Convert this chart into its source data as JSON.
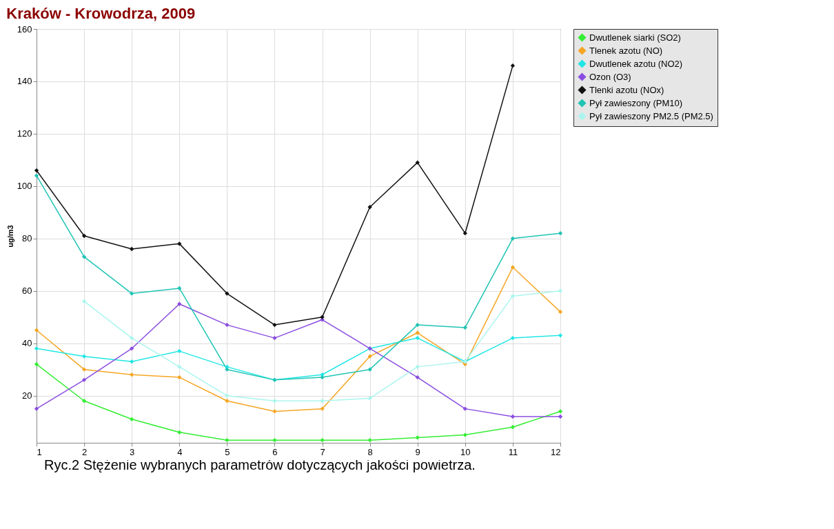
{
  "chart_data": {
    "type": "line",
    "title": "Kraków - Krowodrza, 2009",
    "ylabel": "ug/m3",
    "x": [
      1,
      2,
      3,
      4,
      5,
      6,
      7,
      8,
      9,
      10,
      11,
      12
    ],
    "xlim": [
      1,
      12
    ],
    "xticks": [
      1,
      2,
      3,
      4,
      5,
      6,
      7,
      8,
      9,
      10,
      11,
      12
    ],
    "ylim": [
      2,
      160
    ],
    "yticks": [
      20,
      40,
      60,
      80,
      100,
      120,
      140,
      160
    ],
    "grid": true,
    "legend": "top right",
    "marker": "diamond",
    "line_style": "solid",
    "annotations": [
      "Ryc.2 Stężenie wybranych parametrów dotyczących jakości powietrza."
    ],
    "series": [
      {
        "name": "Dwutlenek siarki (SO2)",
        "color": "#33ee33",
        "values": [
          32,
          18,
          11,
          6,
          3,
          3,
          3,
          3,
          4,
          5,
          8,
          14
        ]
      },
      {
        "name": "Tlenek azotu (NO)",
        "color": "#f5a623",
        "values": [
          45,
          30,
          28,
          27,
          18,
          14,
          15,
          35,
          44,
          32,
          69,
          52
        ]
      },
      {
        "name": "Dwutlenek azotu (NO2)",
        "color": "#22e6e6",
        "values": [
          38,
          35,
          33,
          37,
          31,
          26,
          28,
          38,
          42,
          33,
          42,
          43
        ]
      },
      {
        "name": "Ozon (O3)",
        "color": "#8a4de0",
        "values": [
          15,
          26,
          38,
          55,
          47,
          42,
          49,
          38,
          27,
          15,
          12,
          12
        ]
      },
      {
        "name": "Tlenki azotu (NOx)",
        "color": "#111111",
        "values": [
          106,
          81,
          76,
          78,
          59,
          47,
          50,
          92,
          109,
          82,
          146,
          null
        ]
      },
      {
        "name": "Pył zawieszony (PM10)",
        "color": "#1fc4b4",
        "values": [
          104,
          73,
          59,
          61,
          30,
          26,
          27,
          30,
          47,
          46,
          80,
          82
        ]
      },
      {
        "name": "Pył zawieszony PM2.5 (PM2.5)",
        "color": "#aaf5ee",
        "values": [
          null,
          56,
          42,
          31,
          20,
          18,
          18,
          19,
          31,
          33,
          58,
          60
        ]
      }
    ]
  }
}
